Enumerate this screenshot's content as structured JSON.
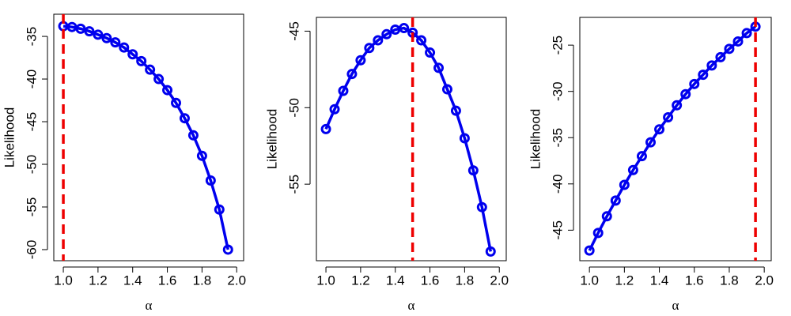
{
  "chart_data": [
    {
      "type": "line",
      "x_label": "α",
      "y_label": "Likelihood",
      "x": [
        1.0,
        1.05,
        1.1,
        1.15,
        1.2,
        1.25,
        1.3,
        1.35,
        1.4,
        1.45,
        1.5,
        1.55,
        1.6,
        1.65,
        1.7,
        1.75,
        1.8,
        1.85,
        1.9,
        1.95
      ],
      "values": [
        -33.8,
        -33.9,
        -34.1,
        -34.4,
        -34.8,
        -35.2,
        -35.7,
        -36.3,
        -37.1,
        -37.9,
        -38.9,
        -40.0,
        -41.3,
        -42.8,
        -44.6,
        -46.6,
        -49.0,
        -51.9,
        -55.3,
        -60.0
      ],
      "color": "#0000ee",
      "vline": 1.0,
      "vline_color": "#ee0000",
      "xlim": [
        0.945,
        2.04
      ],
      "xticks": [
        {
          "value": 1.0,
          "label": "1.0"
        },
        1.2,
        1.4,
        1.6,
        1.8,
        {
          "value": 2.0,
          "label": "2.0"
        }
      ],
      "ylim": [
        -61.3,
        -32.4
      ],
      "yticks": [
        -35,
        -40,
        -45,
        -50,
        -55,
        -60
      ]
    },
    {
      "type": "line",
      "x_label": "α",
      "y_label": "Likelihood",
      "x": [
        1.0,
        1.05,
        1.1,
        1.15,
        1.2,
        1.25,
        1.3,
        1.35,
        1.4,
        1.45,
        1.5,
        1.55,
        1.6,
        1.65,
        1.7,
        1.75,
        1.8,
        1.85,
        1.9,
        1.95
      ],
      "values": [
        -51.4,
        -50.1,
        -48.9,
        -47.8,
        -46.9,
        -46.1,
        -45.6,
        -45.2,
        -44.9,
        -44.8,
        -45.1,
        -45.6,
        -46.4,
        -47.4,
        -48.8,
        -50.2,
        -52.0,
        -54.1,
        -56.5,
        -59.4
      ],
      "color": "#0000ee",
      "vline": 1.5,
      "vline_color": "#ee0000",
      "xlim": [
        0.945,
        2.04
      ],
      "xticks": [
        {
          "value": 1.0,
          "label": "1.0"
        },
        1.2,
        1.4,
        1.6,
        1.8,
        {
          "value": 2.0,
          "label": "2.0"
        }
      ],
      "ylim": [
        -60.0,
        -44.1
      ],
      "yticks": [
        -45,
        -50,
        -55
      ]
    },
    {
      "type": "line",
      "x_label": "α",
      "y_label": "Likelihood",
      "x": [
        1.0,
        1.05,
        1.1,
        1.15,
        1.2,
        1.25,
        1.3,
        1.35,
        1.4,
        1.45,
        1.5,
        1.55,
        1.6,
        1.65,
        1.7,
        1.75,
        1.8,
        1.85,
        1.9,
        1.95
      ],
      "values": [
        -47.2,
        -45.3,
        -43.5,
        -41.8,
        -40.1,
        -38.5,
        -37.0,
        -35.5,
        -34.1,
        -32.8,
        -31.5,
        -30.3,
        -29.2,
        -28.2,
        -27.2,
        -26.3,
        -25.4,
        -24.6,
        -23.7,
        -23.0
      ],
      "color": "#0000ee",
      "vline": 1.95,
      "vline_color": "#ee0000",
      "xlim": [
        0.945,
        2.04
      ],
      "xticks": [
        {
          "value": 1.0,
          "label": "1.0"
        },
        1.2,
        1.4,
        1.6,
        1.8,
        {
          "value": 2.0,
          "label": "2.0"
        }
      ],
      "ylim": [
        -48.3,
        -22.0
      ],
      "yticks": [
        -25,
        -30,
        -35,
        -40,
        -45
      ]
    }
  ]
}
